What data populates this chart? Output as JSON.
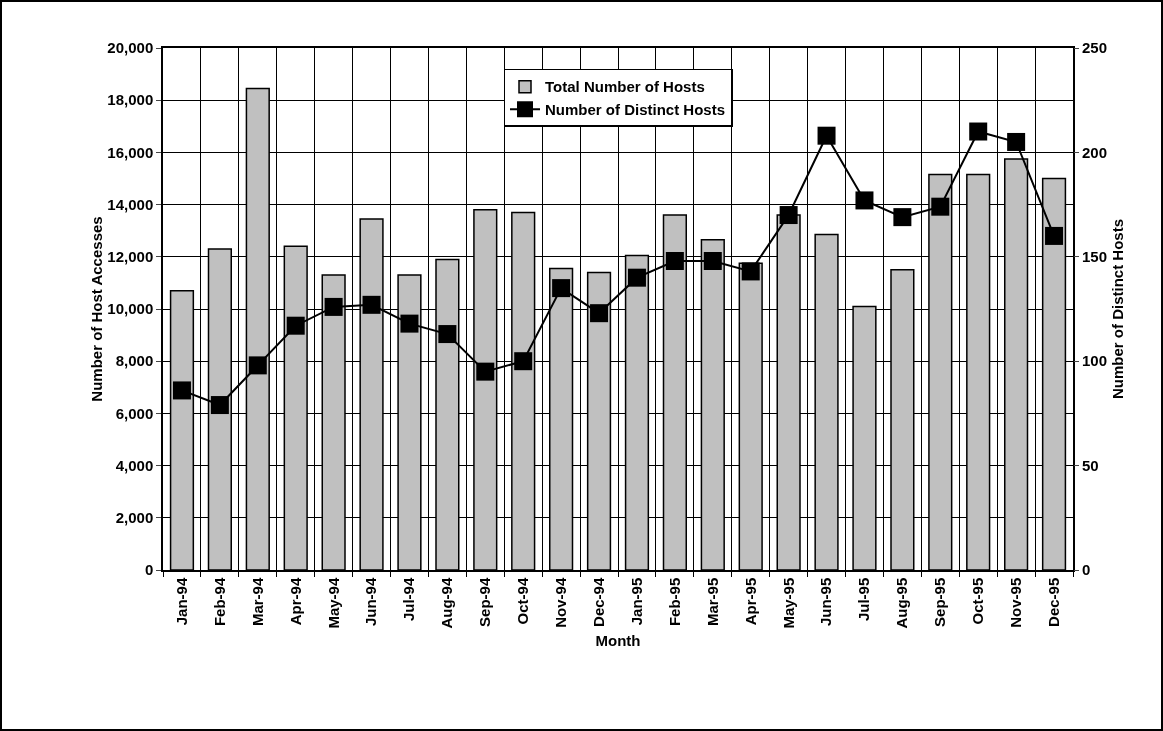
{
  "chart_data": {
    "type": "bar",
    "categories": [
      "Jan-94",
      "Feb-94",
      "Mar-94",
      "Apr-94",
      "May-94",
      "Jun-94",
      "Jul-94",
      "Aug-94",
      "Sep-94",
      "Oct-94",
      "Nov-94",
      "Dec-94",
      "Jan-95",
      "Feb-95",
      "Mar-95",
      "Apr-95",
      "May-95",
      "Jun-95",
      "Jul-95",
      "Aug-95",
      "Sep-95",
      "Oct-95",
      "Nov-95",
      "Dec-95"
    ],
    "series": [
      {
        "name": "Total Number of Hosts",
        "color": "#c0c0c0",
        "values": [
          10700,
          12300,
          18450,
          12400,
          11300,
          13450,
          11300,
          11900,
          13800,
          13700,
          11550,
          11400,
          12050,
          13600,
          12650,
          11750,
          13600,
          12850,
          10100,
          11500,
          15150,
          15150,
          15750,
          15000
        ]
      },
      {
        "name": "Number of Distinct Hosts",
        "type": "line",
        "axis": "y2",
        "color": "#000000",
        "marker": "square",
        "line_style": "solid",
        "values": [
          86,
          79,
          98,
          117,
          126,
          127,
          118,
          113,
          95,
          100,
          135,
          123,
          140,
          148,
          148,
          143,
          170,
          208,
          177,
          169,
          174,
          210,
          205,
          160
        ]
      }
    ],
    "xlabel": "Month",
    "ylabel": "Number of Host Accesses",
    "y2label": "Number of Distinct Hosts",
    "ylim": [
      0,
      20000
    ],
    "yticks": [
      {
        "value": 0,
        "label": "0"
      },
      {
        "value": 2000,
        "label": "2,000"
      },
      {
        "value": 4000,
        "label": "4,000"
      },
      {
        "value": 6000,
        "label": "6,000"
      },
      {
        "value": 8000,
        "label": "8,000"
      },
      {
        "value": 10000,
        "label": "10,000"
      },
      {
        "value": 12000,
        "label": "12,000"
      },
      {
        "value": 14000,
        "label": "14,000"
      },
      {
        "value": 16000,
        "label": "16,000"
      },
      {
        "value": 18000,
        "label": "18,000"
      },
      {
        "value": 20000,
        "label": "20,000"
      }
    ],
    "y2lim": [
      0,
      250
    ],
    "y2ticks": [
      0,
      50,
      100,
      150,
      200,
      250
    ],
    "grid": true,
    "legend": "top"
  }
}
